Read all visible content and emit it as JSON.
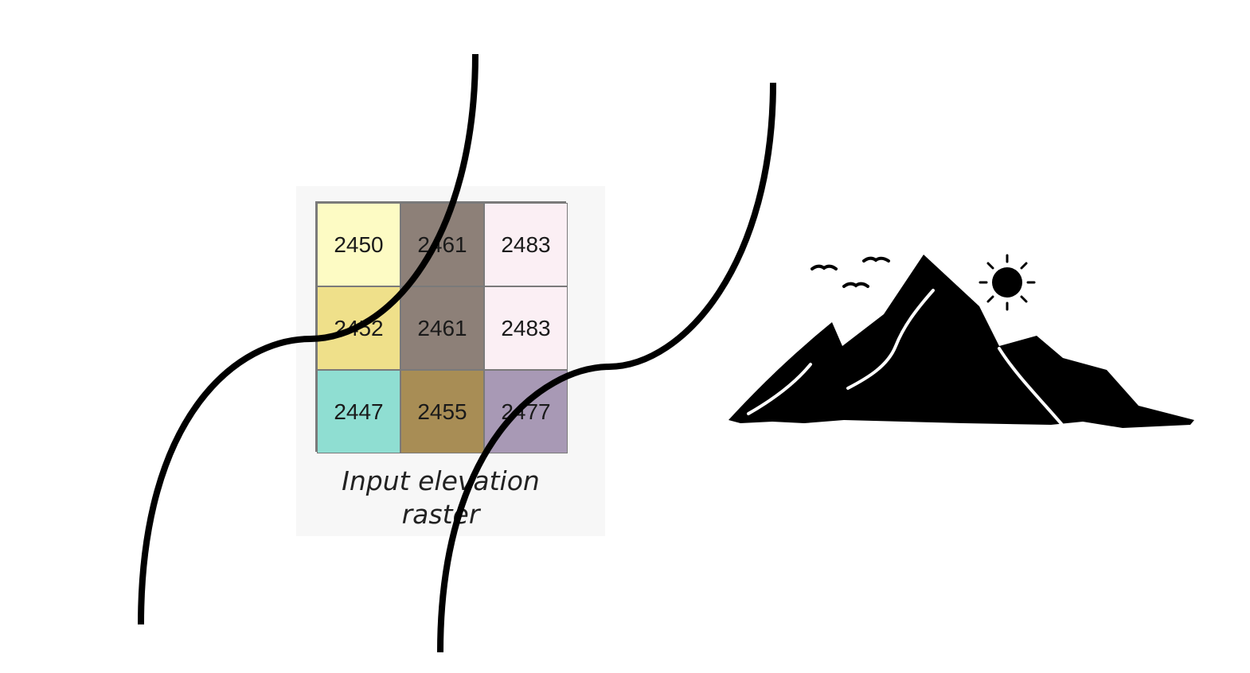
{
  "raster": {
    "caption_line1": "Input elevation",
    "caption_line2": "raster",
    "cells": [
      {
        "value": "2450",
        "color": "#fdfbc4"
      },
      {
        "value": "2461",
        "color": "#8d8078"
      },
      {
        "value": "2483",
        "color": "#fbeff4"
      },
      {
        "value": "2452",
        "color": "#efe08a"
      },
      {
        "value": "2461",
        "color": "#8d8078"
      },
      {
        "value": "2483",
        "color": "#fbeff4"
      },
      {
        "value": "2447",
        "color": "#8fded2"
      },
      {
        "value": "2455",
        "color": "#a88d55"
      },
      {
        "value": "2477",
        "color": "#a899b5"
      }
    ]
  },
  "icons": {
    "mountain": "mountain-with-sun-and-birds-icon"
  }
}
